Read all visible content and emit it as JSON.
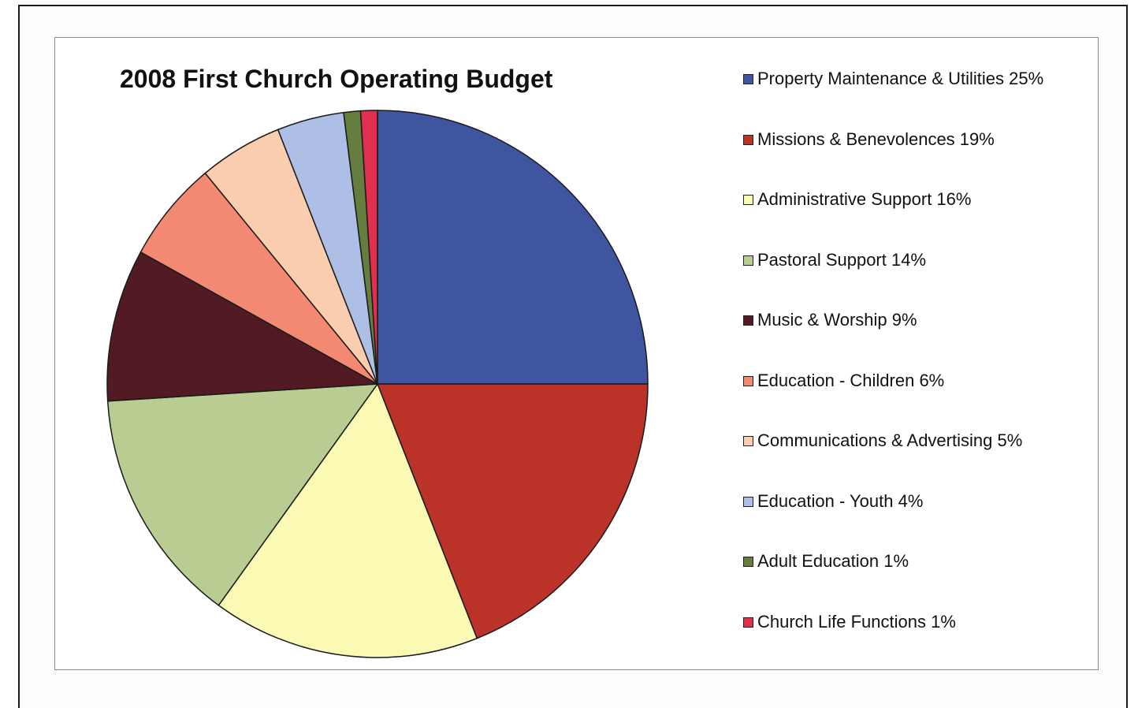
{
  "chart_data": {
    "type": "pie",
    "title": "2008 First Church Operating Budget",
    "start": "12 o'clock",
    "direction": "clockwise",
    "legend_position": "right",
    "slices": [
      {
        "label": "Property Maintenance & Utilities 25%",
        "value": 25,
        "color": "#4055A0"
      },
      {
        "label": "Missions & Benevolences 19%",
        "value": 19,
        "color": "#BB3228"
      },
      {
        "label": "Administrative Support 16%",
        "value": 16,
        "color": "#FAFAB4"
      },
      {
        "label": "Pastoral Support 14%",
        "value": 14,
        "color": "#B9CC92"
      },
      {
        "label": "Music & Worship 9%",
        "value": 9,
        "color": "#521A22"
      },
      {
        "label": "Education - Children 6%",
        "value": 6,
        "color": "#F38873"
      },
      {
        "label": "Communications & Advertising 5%",
        "value": 5,
        "color": "#F9CDAD"
      },
      {
        "label": "Education - Youth 4%",
        "value": 4,
        "color": "#AEBFE6"
      },
      {
        "label": "Adult Education 1%",
        "value": 1,
        "color": "#657E3F"
      },
      {
        "label": "Church Life Functions 1%",
        "value": 1,
        "color": "#E0304F"
      }
    ]
  }
}
